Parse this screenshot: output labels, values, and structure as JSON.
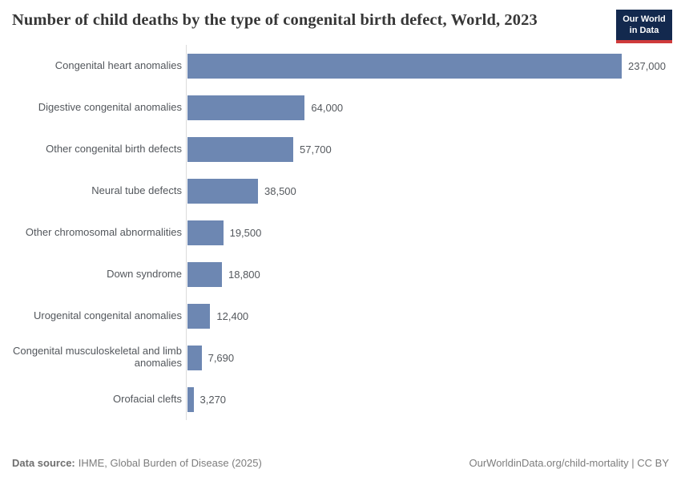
{
  "header": {
    "title": "Number of child deaths by the type of congenital birth defect, World, 2023"
  },
  "logo": {
    "line1": "Our World",
    "line2": "in Data",
    "bg_color": "#13294e",
    "accent_color": "#cf3b3b"
  },
  "chart_data": {
    "type": "bar",
    "orientation": "horizontal",
    "title": "Number of child deaths by the type of congenital birth defect, World, 2023",
    "categories": [
      "Congenital heart anomalies",
      "Digestive congenital anomalies",
      "Other congenital birth defects",
      "Neural tube defects",
      "Other chromosomal abnormalities",
      "Down syndrome",
      "Urogenital congenital anomalies",
      "Congenital musculoskeletal and limb anomalies",
      "Orofacial clefts"
    ],
    "values": [
      237000,
      64000,
      57700,
      38500,
      19500,
      18800,
      12400,
      7690,
      3270
    ],
    "value_labels": [
      "237,000",
      "64,000",
      "57,700",
      "38,500",
      "19,500",
      "18,800",
      "12,400",
      "7,690",
      "3,270"
    ],
    "bar_color": "#6d87b2",
    "axis_color": "#dcdcdc",
    "xlim": [
      0,
      237000
    ],
    "grid": false,
    "legend": "none"
  },
  "footer": {
    "datasource_label": "Data source:",
    "datasource_value": "IHME, Global Burden of Disease (2025)",
    "rights": "OurWorldinData.org/child-mortality | CC BY"
  }
}
